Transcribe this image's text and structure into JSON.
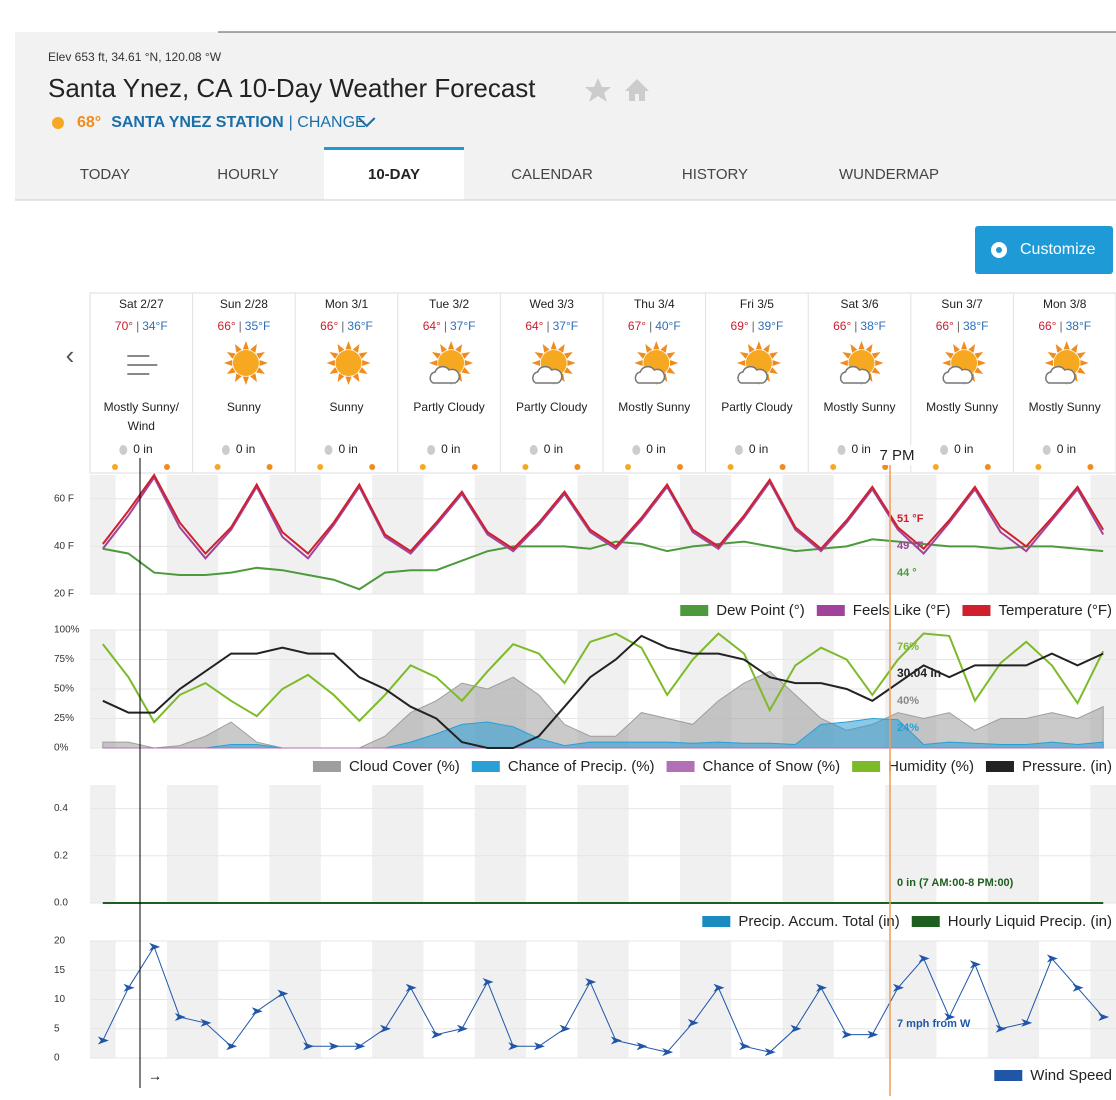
{
  "header": {
    "elev": "Elev 653 ft, 34.61 °N, 120.08 °W",
    "title": "Santa Ynez, CA 10-Day Weather Forecast",
    "temp": "68°",
    "station": "SANTA YNEZ STATION",
    "change": "| CHANGE"
  },
  "tabs": [
    "TODAY",
    "HOURLY",
    "10-DAY",
    "CALENDAR",
    "HISTORY",
    "WUNDERMAP"
  ],
  "active_tab": "10-DAY",
  "customize": "Customize",
  "days": [
    {
      "name": "Sat 2/27",
      "hi": "70°",
      "lo": "34°F",
      "condition": "Mostly Sunny/Wind",
      "precip": "0 in"
    },
    {
      "name": "Sun 2/28",
      "hi": "66°",
      "lo": "35°F",
      "condition": "Sunny",
      "precip": "0 in"
    },
    {
      "name": "Mon 3/1",
      "hi": "66°",
      "lo": "36°F",
      "condition": "Sunny",
      "precip": "0 in"
    },
    {
      "name": "Tue 3/2",
      "hi": "64°",
      "lo": "37°F",
      "condition": "Partly Cloudy",
      "precip": "0 in"
    },
    {
      "name": "Wed 3/3",
      "hi": "64°",
      "lo": "37°F",
      "condition": "Partly Cloudy",
      "precip": "0 in"
    },
    {
      "name": "Thu 3/4",
      "hi": "67°",
      "lo": "40°F",
      "condition": "Mostly Sunny",
      "precip": "0 in"
    },
    {
      "name": "Fri 3/5",
      "hi": "69°",
      "lo": "39°F",
      "condition": "Partly Cloudy",
      "precip": "0 in"
    },
    {
      "name": "Sat 3/6",
      "hi": "66°",
      "lo": "38°F",
      "condition": "Mostly Sunny",
      "precip": "0 in"
    },
    {
      "name": "Sun 3/7",
      "hi": "66°",
      "lo": "38°F",
      "condition": "Mostly Sunny",
      "precip": "0 in"
    },
    {
      "name": "Mon 3/8",
      "hi": "66°",
      "lo": "38°F",
      "condition": "Mostly Sunny",
      "precip": "0 in"
    }
  ],
  "hover_time": "7 PM",
  "now_marker": "→",
  "chart_data": [
    {
      "type": "line",
      "ylim": [
        20,
        70
      ],
      "yticks": [
        {
          "value": 20,
          "label": "20 F"
        },
        {
          "value": 40,
          "label": "40 F"
        },
        {
          "value": 60,
          "label": "60 F"
        }
      ],
      "series": [
        {
          "name": "Dew Point (°)",
          "color": "#4d9a3e",
          "values": [
            39,
            37,
            29,
            28,
            28,
            29,
            31,
            30,
            28,
            26,
            22,
            29,
            30,
            30,
            34,
            38,
            40,
            40,
            40,
            39,
            42,
            41,
            38,
            40,
            41,
            42,
            40,
            38,
            39,
            40,
            43,
            42,
            41,
            40,
            40,
            39,
            40,
            40,
            39,
            38
          ]
        },
        {
          "name": "Feels Like (°F)",
          "color": "#a0449b",
          "values": [
            39,
            53,
            69,
            48,
            35,
            47,
            65,
            44,
            35,
            49,
            65,
            44,
            37,
            49,
            62,
            45,
            38,
            49,
            62,
            46,
            39,
            51,
            65,
            46,
            39,
            52,
            67,
            47,
            38,
            50,
            64,
            47,
            37,
            50,
            64,
            46,
            38,
            51,
            64,
            45
          ]
        },
        {
          "name": "Temperature (°F)",
          "color": "#d0202e",
          "values": [
            41,
            55,
            70,
            50,
            37,
            48,
            66,
            46,
            37,
            50,
            66,
            45,
            38,
            50,
            63,
            46,
            39,
            50,
            63,
            47,
            40,
            52,
            66,
            47,
            40,
            53,
            68,
            48,
            39,
            51,
            65,
            48,
            39,
            51,
            65,
            48,
            40,
            52,
            65,
            47
          ]
        }
      ],
      "annotations": [
        "51 °F",
        "49 °F",
        "44 °"
      ]
    },
    {
      "type": "line",
      "ylim": [
        0,
        100
      ],
      "yticks": [
        {
          "value": 0,
          "label": "0%"
        },
        {
          "value": 25,
          "label": "25%"
        },
        {
          "value": 50,
          "label": "50%"
        },
        {
          "value": 75,
          "label": "75%"
        },
        {
          "value": 100,
          "label": "100%"
        }
      ],
      "y2lim": [
        29.94,
        30.14
      ],
      "series": [
        {
          "name": "Cloud Cover (%)",
          "color": "#9e9e9e",
          "style": "area",
          "values": [
            5,
            5,
            0,
            2,
            10,
            22,
            5,
            0,
            0,
            0,
            0,
            10,
            30,
            40,
            55,
            50,
            60,
            45,
            20,
            10,
            10,
            30,
            25,
            20,
            40,
            55,
            65,
            45,
            25,
            15,
            20,
            30,
            25,
            30,
            15,
            25,
            25,
            30,
            25,
            35
          ]
        },
        {
          "name": "Chance of Precip. (%)",
          "color": "#2a9fd6",
          "style": "area",
          "values": [
            0,
            0,
            0,
            0,
            0,
            3,
            3,
            0,
            0,
            0,
            0,
            0,
            5,
            12,
            20,
            22,
            18,
            8,
            2,
            5,
            5,
            5,
            5,
            4,
            5,
            4,
            4,
            3,
            20,
            22,
            25,
            24,
            3,
            5,
            4,
            3,
            3,
            5,
            3,
            5
          ]
        },
        {
          "name": "Chance of Snow (%)",
          "color": "#b36fb5",
          "style": "area",
          "values": [
            0,
            0,
            0,
            0,
            0,
            0,
            0,
            0,
            0,
            0,
            0,
            0,
            0,
            0,
            0,
            0,
            0,
            0,
            0,
            0,
            0,
            0,
            0,
            0,
            0,
            0,
            0,
            0,
            0,
            0,
            0,
            0,
            0,
            0,
            0,
            0,
            0,
            0,
            0,
            0
          ]
        },
        {
          "name": "Humidity (%)",
          "color": "#7dba2a",
          "values": [
            88,
            60,
            22,
            45,
            55,
            40,
            27,
            50,
            62,
            45,
            23,
            45,
            70,
            60,
            40,
            65,
            88,
            80,
            55,
            90,
            97,
            85,
            45,
            75,
            97,
            80,
            32,
            70,
            85,
            75,
            45,
            75,
            97,
            95,
            40,
            72,
            90,
            70,
            38,
            82
          ]
        },
        {
          "name": "Pressure. (in)",
          "color": "#222222",
          "axis": "y2",
          "values": [
            30.02,
            30.0,
            30.0,
            30.04,
            30.07,
            30.1,
            30.1,
            30.11,
            30.1,
            30.1,
            30.06,
            30.04,
            30.01,
            29.99,
            29.95,
            29.94,
            29.94,
            29.96,
            30.01,
            30.06,
            30.09,
            30.13,
            30.11,
            30.1,
            30.1,
            30.09,
            30.06,
            30.05,
            30.05,
            30.04,
            30.02,
            30.05,
            30.08,
            30.06,
            30.08,
            30.08,
            30.08,
            30.1,
            30.08,
            30.1
          ]
        }
      ],
      "annotations": [
        "76%",
        "30.04 in",
        "40%",
        "24%"
      ]
    },
    {
      "type": "line",
      "ylim": [
        0,
        0.5
      ],
      "yticks": [
        {
          "value": 0,
          "label": "0.0"
        },
        0.2,
        0.4
      ],
      "series": [
        {
          "name": "Precip. Accum. Total (in)",
          "color": "#1a8bbf",
          "values": [
            0,
            0,
            0,
            0,
            0,
            0,
            0,
            0,
            0,
            0,
            0,
            0,
            0,
            0,
            0,
            0,
            0,
            0,
            0,
            0,
            0,
            0,
            0,
            0,
            0,
            0,
            0,
            0,
            0,
            0,
            0,
            0,
            0,
            0,
            0,
            0,
            0,
            0,
            0,
            0
          ]
        },
        {
          "name": "Hourly Liquid Precip. (in)",
          "color": "#1e5e1e",
          "values": [
            0,
            0,
            0,
            0,
            0,
            0,
            0,
            0,
            0,
            0,
            0,
            0,
            0,
            0,
            0,
            0,
            0,
            0,
            0,
            0,
            0,
            0,
            0,
            0,
            0,
            0,
            0,
            0,
            0,
            0,
            0,
            0,
            0,
            0,
            0,
            0,
            0,
            0,
            0,
            0
          ]
        }
      ],
      "annotations": [
        "0 in (7 AM:00-8 PM:00)"
      ]
    },
    {
      "type": "line",
      "ylim": [
        0,
        20
      ],
      "yticks": [
        0,
        5,
        10,
        15,
        20
      ],
      "series": [
        {
          "name": "Wind Speed",
          "color": "#1f56a8",
          "values": [
            3,
            12,
            19,
            7,
            6,
            2,
            8,
            11,
            2,
            2,
            2,
            5,
            12,
            4,
            5,
            13,
            2,
            2,
            5,
            13,
            3,
            2,
            1,
            6,
            12,
            2,
            1,
            5,
            12,
            4,
            4,
            12,
            17,
            7,
            16,
            5,
            6,
            17,
            12,
            7
          ]
        }
      ],
      "annotations": [
        "7 mph from W"
      ]
    }
  ]
}
